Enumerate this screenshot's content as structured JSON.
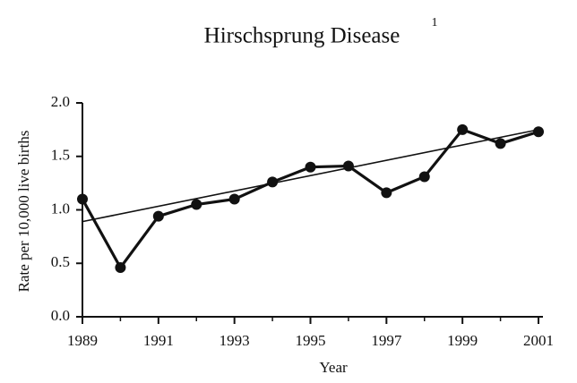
{
  "chart_data": {
    "type": "line",
    "title": "Hirschsprung Disease",
    "title_note": "1",
    "xlabel": "Year",
    "ylabel": "Rate per 10,000 live births",
    "x": [
      1989,
      1990,
      1991,
      1992,
      1993,
      1994,
      1995,
      1996,
      1997,
      1998,
      1999,
      2000,
      2001
    ],
    "series": [
      {
        "color": "#111111",
        "values": [
          1.1,
          0.46,
          0.94,
          1.05,
          1.1,
          1.26,
          1.4,
          1.41,
          1.16,
          1.31,
          1.75,
          1.62,
          1.73
        ]
      }
    ],
    "trendline": {
      "color": "#111111",
      "x": [
        1989,
        2001
      ],
      "values": [
        0.89,
        1.75
      ]
    },
    "xlim": [
      1989,
      2001
    ],
    "xticks": [
      1989,
      1991,
      1993,
      1995,
      1997,
      1999,
      2001
    ],
    "xminor_ticks": [
      1990,
      1992,
      1994,
      1996,
      1998,
      2000
    ],
    "ylim": [
      0,
      2
    ],
    "yticks": [
      {
        "value": 0,
        "label": "0.0"
      },
      0.5,
      {
        "value": 1,
        "label": "1.0"
      },
      1.5,
      {
        "value": 2,
        "label": "2.0"
      }
    ],
    "grid": false
  }
}
